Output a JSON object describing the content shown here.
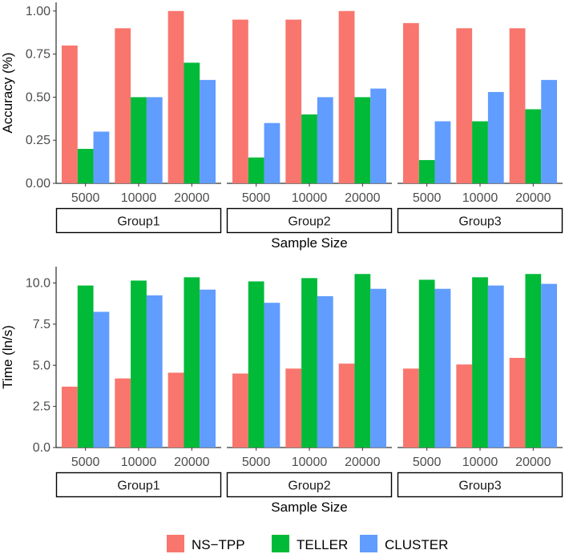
{
  "chart_data": [
    {
      "type": "bar",
      "facets": [
        "Group1",
        "Group2",
        "Group3"
      ],
      "categories": [
        "5000",
        "10000",
        "20000"
      ],
      "series": [
        {
          "name": "NS−TPP",
          "values": {
            "Group1": [
              0.8,
              0.9,
              1.0
            ],
            "Group2": [
              0.95,
              0.95,
              1.0
            ],
            "Group3": [
              0.93,
              0.9,
              0.9
            ]
          }
        },
        {
          "name": "TELLER",
          "values": {
            "Group1": [
              0.2,
              0.5,
              0.7
            ],
            "Group2": [
              0.15,
              0.4,
              0.5
            ],
            "Group3": [
              0.135,
              0.36,
              0.43
            ]
          }
        },
        {
          "name": "CLUSTER",
          "values": {
            "Group1": [
              0.3,
              0.5,
              0.6
            ],
            "Group2": [
              0.35,
              0.5,
              0.55
            ],
            "Group3": [
              0.36,
              0.53,
              0.6
            ]
          }
        }
      ],
      "xlabel": "Sample Size",
      "ylabel": "Accuracy (%)",
      "ylim": [
        0,
        1.05
      ],
      "yticks": [
        "0.00",
        "0.25",
        "0.50",
        "0.75",
        "1.00"
      ],
      "grid": false
    },
    {
      "type": "bar",
      "facets": [
        "Group1",
        "Group2",
        "Group3"
      ],
      "categories": [
        "5000",
        "10000",
        "20000"
      ],
      "series": [
        {
          "name": "NS−TPP",
          "values": {
            "Group1": [
              3.7,
              4.2,
              4.55
            ],
            "Group2": [
              4.5,
              4.8,
              5.1
            ],
            "Group3": [
              4.8,
              5.05,
              5.45
            ]
          }
        },
        {
          "name": "TELLER",
          "values": {
            "Group1": [
              9.85,
              10.15,
              10.35
            ],
            "Group2": [
              10.1,
              10.3,
              10.55
            ],
            "Group3": [
              10.2,
              10.35,
              10.55
            ]
          }
        },
        {
          "name": "CLUSTER",
          "values": {
            "Group1": [
              8.25,
              9.25,
              9.6
            ],
            "Group2": [
              8.8,
              9.2,
              9.65
            ],
            "Group3": [
              9.65,
              9.85,
              9.95
            ]
          }
        }
      ],
      "xlabel": "Sample Size",
      "ylabel": "Time (ln/s)",
      "ylim": [
        0,
        11
      ],
      "yticks": [
        "0.0",
        "2.5",
        "5.0",
        "7.5",
        "10.0"
      ],
      "grid": false
    }
  ],
  "legend": {
    "placement": "bottom",
    "items": [
      {
        "label": "NS−TPP",
        "color": "#F8766D"
      },
      {
        "label": "TELLER",
        "color": "#00BA38"
      },
      {
        "label": "CLUSTER",
        "color": "#619CFF"
      }
    ]
  },
  "colors": {
    "NS−TPP": "#F8766D",
    "TELLER": "#00BA38",
    "CLUSTER": "#619CFF"
  }
}
